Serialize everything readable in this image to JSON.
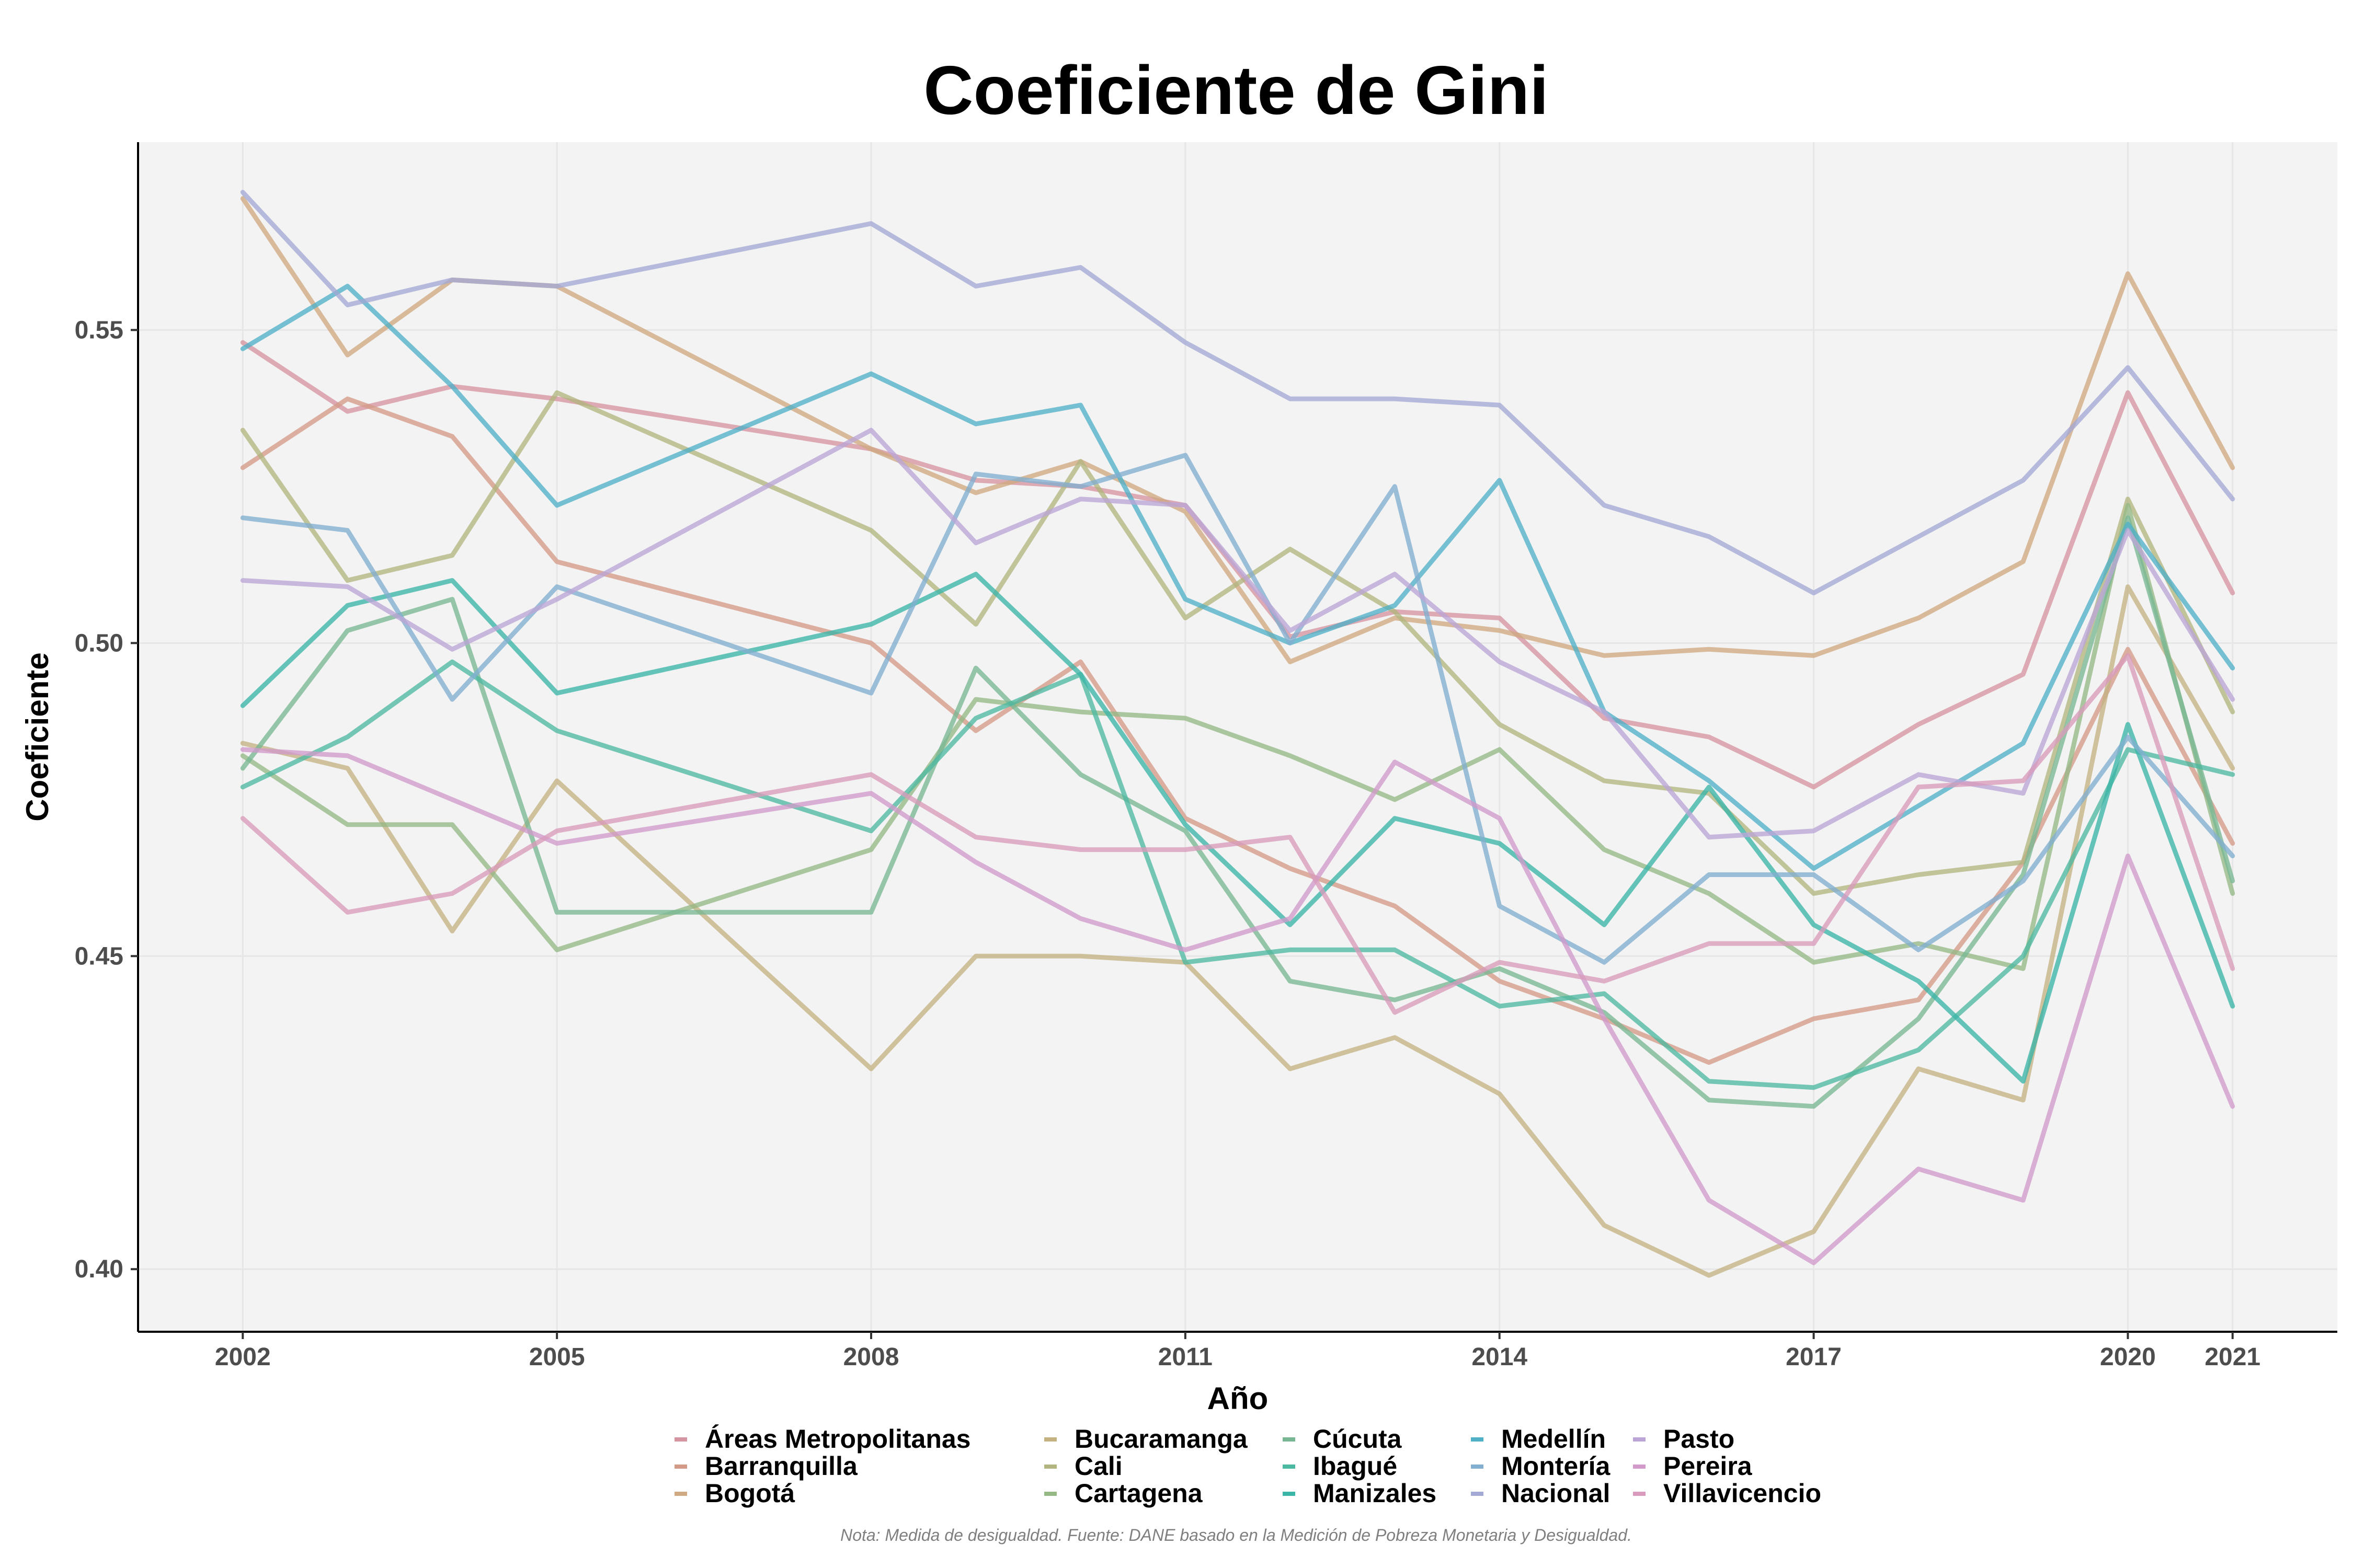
{
  "chart_data": {
    "type": "line",
    "title": "Coeficiente de Gini",
    "xlabel": "Año",
    "ylabel": "Coeficiente",
    "note": "Nota: Medida de desigualdad. Fuente: DANE basado en la Medición de Pobreza Monetaria y Desigualdad.",
    "xlim": [
      2001,
      2022
    ],
    "ylim": [
      0.39,
      0.58
    ],
    "x_ticks": [
      2002,
      2005,
      2008,
      2011,
      2014,
      2017,
      2020,
      2021
    ],
    "x_tick_labels": [
      "2002",
      "2005",
      "2008",
      "2011",
      "2014",
      "2017",
      "2020",
      "2021"
    ],
    "y_ticks": [
      0.4,
      0.45,
      0.5,
      0.55
    ],
    "y_tick_labels": [
      "0.40",
      "0.45",
      "0.50",
      "0.55"
    ],
    "grid": true,
    "legend_position": "bottom",
    "legend_columns": 5,
    "series": [
      {
        "name": "Áreas Metropolitanas",
        "color": "#d694a0",
        "x": [
          2002,
          2003,
          2004,
          2005,
          2008,
          2009,
          2010,
          2011,
          2012,
          2013,
          2014,
          2015,
          2016,
          2017,
          2018,
          2019,
          2020,
          2021
        ],
        "values": [
          0.548,
          0.537,
          0.541,
          0.539,
          0.531,
          0.526,
          0.525,
          0.522,
          0.501,
          0.505,
          0.504,
          0.488,
          0.485,
          0.477,
          0.487,
          0.495,
          0.54,
          0.508
        ]
      },
      {
        "name": "Barranquilla",
        "color": "#d49a88",
        "x": [
          2002,
          2003,
          2004,
          2005,
          2008,
          2009,
          2010,
          2011,
          2012,
          2013,
          2014,
          2015,
          2016,
          2017,
          2018,
          2019,
          2020,
          2021
        ],
        "values": [
          0.528,
          0.539,
          0.533,
          0.513,
          0.5,
          0.486,
          0.497,
          0.472,
          0.464,
          0.458,
          0.446,
          0.44,
          0.433,
          0.44,
          0.443,
          0.465,
          0.499,
          0.468
        ]
      },
      {
        "name": "Bogotá",
        "color": "#cfa981",
        "x": [
          2002,
          2003,
          2004,
          2005,
          2008,
          2009,
          2010,
          2011,
          2012,
          2013,
          2014,
          2015,
          2016,
          2017,
          2018,
          2019,
          2020,
          2021
        ],
        "values": [
          0.571,
          0.546,
          0.558,
          0.557,
          0.531,
          0.524,
          0.529,
          0.521,
          0.497,
          0.504,
          0.502,
          0.498,
          0.499,
          0.498,
          0.504,
          0.513,
          0.559,
          0.528
        ]
      },
      {
        "name": "Bucaramanga",
        "color": "#c4b283",
        "x": [
          2002,
          2003,
          2004,
          2005,
          2008,
          2009,
          2010,
          2011,
          2012,
          2013,
          2014,
          2015,
          2016,
          2017,
          2018,
          2019,
          2020,
          2021
        ],
        "values": [
          0.484,
          0.48,
          0.454,
          0.478,
          0.432,
          0.45,
          0.45,
          0.449,
          0.432,
          0.437,
          0.428,
          0.407,
          0.399,
          0.406,
          0.432,
          0.427,
          0.509,
          0.48
        ]
      },
      {
        "name": "Cali",
        "color": "#b2b57f",
        "x": [
          2002,
          2003,
          2004,
          2005,
          2008,
          2009,
          2010,
          2011,
          2012,
          2013,
          2014,
          2015,
          2016,
          2017,
          2018,
          2019,
          2020,
          2021
        ],
        "values": [
          0.534,
          0.51,
          0.514,
          0.54,
          0.518,
          0.503,
          0.529,
          0.504,
          0.515,
          0.505,
          0.487,
          0.478,
          0.476,
          0.46,
          0.463,
          0.465,
          0.523,
          0.489
        ]
      },
      {
        "name": "Cartagena",
        "color": "#95b985",
        "x": [
          2002,
          2003,
          2004,
          2005,
          2008,
          2009,
          2010,
          2011,
          2012,
          2013,
          2014,
          2015,
          2016,
          2017,
          2018,
          2019,
          2020,
          2021
        ],
        "values": [
          0.482,
          0.471,
          0.471,
          0.451,
          0.467,
          0.491,
          0.489,
          0.488,
          0.482,
          0.475,
          0.483,
          0.467,
          0.46,
          0.449,
          0.452,
          0.448,
          0.522,
          0.46
        ]
      },
      {
        "name": "Cúcuta",
        "color": "#79b793",
        "x": [
          2002,
          2003,
          2004,
          2005,
          2008,
          2009,
          2010,
          2011,
          2012,
          2013,
          2014,
          2015,
          2016,
          2017,
          2018,
          2019,
          2020,
          2021
        ],
        "values": [
          0.48,
          0.502,
          0.507,
          0.457,
          0.457,
          0.496,
          0.479,
          0.47,
          0.446,
          0.443,
          0.448,
          0.441,
          0.427,
          0.426,
          0.44,
          0.463,
          0.52,
          0.462
        ]
      },
      {
        "name": "Ibagué",
        "color": "#4db8a0",
        "x": [
          2002,
          2003,
          2004,
          2005,
          2008,
          2009,
          2010,
          2011,
          2012,
          2013,
          2014,
          2015,
          2016,
          2017,
          2018,
          2019,
          2020,
          2021
        ],
        "values": [
          0.477,
          0.485,
          0.497,
          0.486,
          0.47,
          0.488,
          0.495,
          0.449,
          0.451,
          0.451,
          0.442,
          0.444,
          0.43,
          0.429,
          0.435,
          0.45,
          0.483,
          0.479
        ]
      },
      {
        "name": "Manizales",
        "color": "#3ab5a8",
        "x": [
          2002,
          2003,
          2004,
          2005,
          2008,
          2009,
          2010,
          2011,
          2012,
          2013,
          2014,
          2015,
          2016,
          2017,
          2018,
          2019,
          2020,
          2021
        ],
        "values": [
          0.49,
          0.506,
          0.51,
          0.492,
          0.503,
          0.511,
          0.495,
          0.471,
          0.455,
          0.472,
          0.468,
          0.455,
          0.477,
          0.455,
          0.446,
          0.43,
          0.487,
          0.442
        ]
      },
      {
        "name": "Medellín",
        "color": "#4fb0c6",
        "x": [
          2002,
          2003,
          2004,
          2005,
          2008,
          2009,
          2010,
          2011,
          2012,
          2013,
          2014,
          2015,
          2016,
          2017,
          2018,
          2019,
          2020,
          2021
        ],
        "values": [
          0.547,
          0.557,
          0.541,
          0.522,
          0.543,
          0.535,
          0.538,
          0.507,
          0.5,
          0.506,
          0.526,
          0.489,
          0.478,
          0.464,
          0.474,
          0.484,
          0.519,
          0.496
        ]
      },
      {
        "name": "Montería",
        "color": "#82aed0",
        "x": [
          2002,
          2003,
          2004,
          2005,
          2008,
          2009,
          2010,
          2011,
          2012,
          2013,
          2014,
          2015,
          2016,
          2017,
          2018,
          2019,
          2020,
          2021
        ],
        "values": [
          0.52,
          0.518,
          0.491,
          0.509,
          0.492,
          0.527,
          0.525,
          0.53,
          0.5,
          0.525,
          0.458,
          0.449,
          0.463,
          0.463,
          0.451,
          0.462,
          0.485,
          0.466
        ]
      },
      {
        "name": "Nacional",
        "color": "#a3a8d4",
        "x": [
          2002,
          2003,
          2004,
          2005,
          2008,
          2009,
          2010,
          2011,
          2012,
          2013,
          2014,
          2015,
          2016,
          2017,
          2018,
          2019,
          2020,
          2021
        ],
        "values": [
          0.572,
          0.554,
          0.558,
          0.557,
          0.567,
          0.557,
          0.56,
          0.548,
          0.539,
          0.539,
          0.538,
          0.522,
          0.517,
          0.508,
          0.517,
          0.526,
          0.544,
          0.523
        ]
      },
      {
        "name": "Pasto",
        "color": "#bba5d6",
        "x": [
          2002,
          2003,
          2004,
          2005,
          2008,
          2009,
          2010,
          2011,
          2012,
          2013,
          2014,
          2015,
          2016,
          2017,
          2018,
          2019,
          2020,
          2021
        ],
        "values": [
          0.51,
          0.509,
          0.499,
          0.507,
          0.534,
          0.516,
          0.523,
          0.522,
          0.502,
          0.511,
          0.497,
          0.489,
          0.469,
          0.47,
          0.479,
          0.476,
          0.518,
          0.491
        ]
      },
      {
        "name": "Pereira",
        "color": "#d19acb",
        "x": [
          2002,
          2003,
          2004,
          2005,
          2008,
          2009,
          2010,
          2011,
          2012,
          2013,
          2014,
          2015,
          2016,
          2017,
          2018,
          2019,
          2020,
          2021
        ],
        "values": [
          0.483,
          0.482,
          0.475,
          0.468,
          0.476,
          0.465,
          0.456,
          0.451,
          0.456,
          0.481,
          0.472,
          0.44,
          0.411,
          0.401,
          0.416,
          0.411,
          0.466,
          0.426
        ]
      },
      {
        "name": "Villavicencio",
        "color": "#d99bbb",
        "x": [
          2002,
          2003,
          2004,
          2005,
          2008,
          2009,
          2010,
          2011,
          2012,
          2013,
          2014,
          2015,
          2016,
          2017,
          2018,
          2019,
          2020,
          2021
        ],
        "values": [
          0.472,
          0.457,
          0.46,
          0.47,
          0.479,
          0.469,
          0.467,
          0.467,
          0.469,
          0.441,
          0.449,
          0.446,
          0.452,
          0.452,
          0.477,
          0.478,
          0.498,
          0.448
        ]
      }
    ]
  }
}
